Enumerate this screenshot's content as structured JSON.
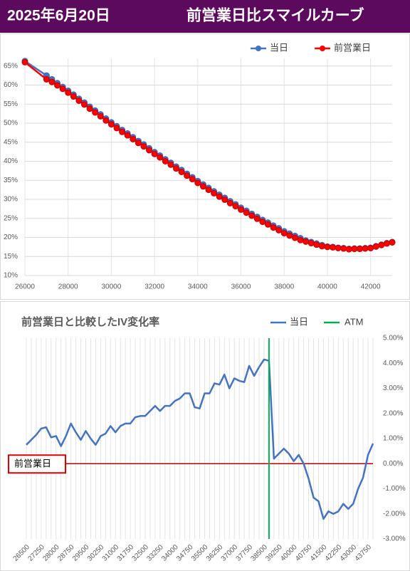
{
  "header": {
    "date": "2025年6月20日",
    "title": "前営業日比スマイルカーブ"
  },
  "chart_data": [
    {
      "type": "line",
      "x": [
        26000,
        27000,
        27250,
        27500,
        27750,
        28000,
        28250,
        28500,
        28750,
        29000,
        29250,
        29500,
        29750,
        30000,
        30250,
        30500,
        30750,
        31000,
        31250,
        31500,
        31750,
        32000,
        32250,
        32500,
        32750,
        33000,
        33250,
        33500,
        33750,
        34000,
        34250,
        34500,
        34750,
        35000,
        35250,
        35500,
        35750,
        36000,
        36250,
        36500,
        36750,
        37000,
        37250,
        37500,
        37750,
        38000,
        38250,
        38500,
        38750,
        39000,
        39250,
        39500,
        39750,
        40000,
        40250,
        40500,
        40750,
        41000,
        41250,
        41500,
        41750,
        42000,
        42250,
        42500,
        42750,
        43000
      ],
      "series": [
        {
          "name": "当日",
          "color": "#4472c4",
          "values": [
            66.3,
            62.5,
            61.5,
            60.5,
            59.5,
            58.5,
            57.5,
            56.4,
            55.4,
            54.3,
            53.3,
            52.3,
            51.2,
            50.2,
            49.2,
            48.2,
            47.3,
            46.3,
            45.3,
            44.4,
            43.4,
            42.4,
            41.5,
            40.5,
            39.6,
            38.6,
            37.7,
            36.7,
            35.8,
            34.8,
            33.9,
            33.0,
            32.1,
            31.2,
            30.4,
            29.5,
            28.7,
            27.8,
            27.0,
            26.2,
            25.4,
            24.6,
            23.9,
            23.1,
            22.4,
            21.6,
            21.0,
            20.4,
            19.8,
            19.2,
            18.8,
            18.4,
            18.0,
            17.6,
            17.5,
            17.3,
            17.2,
            17.0,
            17.1,
            17.1,
            17.2,
            17.3,
            17.7,
            18.1,
            18.5,
            18.8
          ]
        },
        {
          "name": "前営業日",
          "color": "#ff0000",
          "values": [
            66.0,
            61.5,
            60.8,
            59.9,
            59.0,
            58.0,
            57.0,
            55.9,
            54.9,
            53.8,
            52.8,
            51.8,
            50.7,
            49.7,
            48.7,
            47.7,
            46.8,
            45.8,
            44.8,
            43.9,
            42.9,
            41.9,
            41.0,
            40.0,
            39.1,
            38.1,
            37.2,
            36.2,
            35.3,
            34.3,
            33.4,
            32.5,
            31.6,
            30.7,
            29.9,
            29.0,
            28.2,
            27.3,
            26.5,
            25.7,
            24.9,
            24.1,
            23.4,
            22.6,
            21.9,
            21.1,
            20.5,
            19.9,
            19.3,
            18.9,
            18.5,
            18.1,
            17.7,
            17.5,
            17.4,
            17.2,
            17.1,
            16.9,
            17.0,
            17.0,
            17.1,
            17.2,
            17.6,
            18.0,
            18.4,
            18.7
          ]
        }
      ],
      "xlim": [
        26000,
        43000
      ],
      "ylim": [
        10,
        67
      ],
      "xticks": [
        26000,
        28000,
        30000,
        32000,
        34000,
        36000,
        38000,
        40000,
        42000
      ],
      "yticks": [
        {
          "value": 10,
          "label": "10%"
        },
        {
          "value": 15,
          "label": "15%"
        },
        {
          "value": 20,
          "label": "20%"
        },
        {
          "value": 25,
          "label": "25%"
        },
        {
          "value": 30,
          "label": "30%"
        },
        {
          "value": 35,
          "label": "35%"
        },
        {
          "value": 40,
          "label": "40%"
        },
        {
          "value": 45,
          "label": "45%"
        },
        {
          "value": 50,
          "label": "50%"
        },
        {
          "value": 55,
          "label": "55%"
        },
        {
          "value": 60,
          "label": "60%"
        },
        {
          "value": 65,
          "label": "65%"
        }
      ],
      "markers": true,
      "ygrid": true,
      "xgrid": "ticks",
      "legend": "top-right",
      "y_axis_side": "left",
      "xtick_rotation": 0
    },
    {
      "type": "line",
      "title": "前営業日と比較したIV変化率",
      "x": [
        26500,
        26750,
        27000,
        27250,
        27500,
        27750,
        28000,
        28250,
        28500,
        28750,
        29000,
        29250,
        29500,
        29750,
        30000,
        30250,
        30500,
        30750,
        31000,
        31250,
        31500,
        31750,
        32000,
        32250,
        32500,
        32750,
        33000,
        33250,
        33500,
        33750,
        34000,
        34250,
        34500,
        34750,
        35000,
        35250,
        35500,
        35750,
        36000,
        36250,
        36500,
        36750,
        37000,
        37250,
        37500,
        37750,
        38000,
        38250,
        38500,
        38750,
        39000,
        39250,
        39500,
        39750,
        40000,
        40250,
        40500,
        40750,
        41000,
        41250,
        41500,
        41750,
        42000,
        42250,
        42500,
        42750,
        43000,
        43250,
        43500,
        43750,
        44000
      ],
      "series": [
        {
          "name": "当日",
          "color": "#4472c4",
          "values": [
            0.75,
            0.95,
            1.15,
            1.4,
            1.45,
            1.05,
            1.1,
            0.7,
            1.1,
            1.6,
            1.25,
            0.95,
            1.3,
            1.0,
            0.75,
            1.1,
            1.2,
            1.5,
            1.25,
            1.5,
            1.6,
            1.6,
            1.85,
            1.9,
            1.9,
            2.1,
            2.3,
            2.1,
            2.3,
            2.3,
            2.5,
            2.6,
            2.8,
            2.8,
            2.25,
            2.2,
            2.8,
            2.8,
            3.2,
            3.15,
            3.55,
            3.0,
            3.4,
            3.3,
            3.25,
            3.9,
            3.5,
            3.85,
            4.15,
            4.1,
            0.2,
            0.4,
            0.6,
            0.4,
            0.1,
            0.35,
            0.0,
            -0.6,
            -1.35,
            -1.5,
            -2.2,
            -1.9,
            -2.0,
            -1.9,
            -1.6,
            -1.8,
            -1.6,
            -1.0,
            -0.55,
            0.35,
            0.8
          ]
        }
      ],
      "atm": {
        "name": "ATM",
        "color": "#00b050",
        "x": 38750
      },
      "reference_line": {
        "label": "前営業日",
        "value": 0,
        "color": "#c00000"
      },
      "xlim": [
        26500,
        44000
      ],
      "ylim": [
        -3,
        5
      ],
      "xticks": [
        26500,
        27250,
        28000,
        28750,
        29500,
        30250,
        31000,
        31750,
        32500,
        33250,
        34000,
        34750,
        35500,
        36250,
        37000,
        37750,
        38500,
        39250,
        40000,
        40750,
        41500,
        42250,
        43000,
        43750
      ],
      "yticks": [
        {
          "value": -3,
          "label": "-3.00%"
        },
        {
          "value": -2,
          "label": "-2.00%"
        },
        {
          "value": -1,
          "label": "-1.00%"
        },
        {
          "value": 0,
          "label": "0.00%"
        },
        {
          "value": 1,
          "label": "1.00%"
        },
        {
          "value": 2,
          "label": "2.00%"
        },
        {
          "value": 3,
          "label": "3.00%"
        },
        {
          "value": 4,
          "label": "4.00%"
        },
        {
          "value": 5,
          "label": "5.00%"
        }
      ],
      "markers": false,
      "ygrid": false,
      "xgrid": "points",
      "legend": "top-right",
      "y_axis_side": "right",
      "xtick_rotation": -45
    }
  ]
}
